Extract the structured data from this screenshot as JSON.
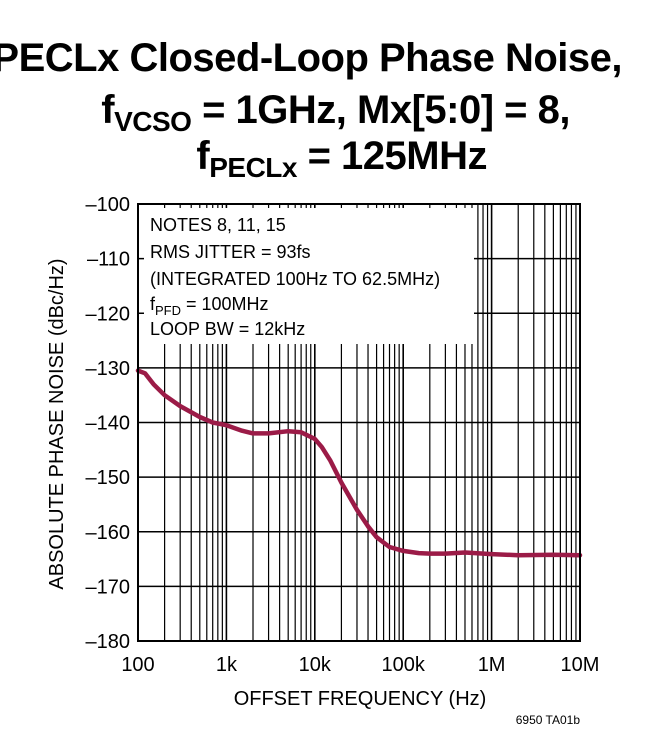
{
  "title": {
    "line1": "PECLx Closed-Loop Phase Noise,",
    "line2_prefix": "f",
    "line2_sub": "VCSO",
    "line2_rest": " = 1GHz, Mx[5:0] = 8,",
    "line3_prefix": "f",
    "line3_sub": "PECLx",
    "line3_rest": " = 125MHz"
  },
  "figure_id": "6950 TA01b",
  "notes": {
    "line1": "NOTES 8, 11, 15",
    "line2": "RMS JITTER = 93fs",
    "line3": "(INTEGRATED 100Hz TO 62.5MHz)",
    "line4_prefix": "f",
    "line4_sub": "PFD",
    "line4_rest": " = 100MHz",
    "line5": "LOOP BW = 12kHz"
  },
  "colors": {
    "curve": "#9b1b47",
    "grid": "#000000"
  },
  "chart_data": {
    "type": "line",
    "xscale": "log",
    "xlabel": "OFFSET FREQUENCY (Hz)",
    "ylabel": "ABSOLUTE PHASE NOISE (dBc/Hz)",
    "xlim": [
      100,
      10000000
    ],
    "ylim": [
      -180,
      -100
    ],
    "xticks": [
      100,
      1000,
      10000,
      100000,
      1000000,
      10000000
    ],
    "xtick_labels": [
      "100",
      "1k",
      "10k",
      "100k",
      "1M",
      "10M"
    ],
    "yticks": [
      -100,
      -110,
      -120,
      -130,
      -140,
      -150,
      -160,
      -170,
      -180
    ],
    "ytick_labels": [
      "–100",
      "–110",
      "–120",
      "–130",
      "–140",
      "–150",
      "–160",
      "–170",
      "–180"
    ],
    "grid": true,
    "series": [
      {
        "x": [
          100,
          120,
          150,
          200,
          300,
          500,
          700,
          1000,
          1500,
          2000,
          3000,
          5000,
          7000,
          10000,
          12000,
          15000,
          20000,
          30000,
          40000,
          50000,
          70000,
          100000,
          150000,
          200000,
          300000,
          500000,
          1000000,
          2000000,
          5000000,
          10000000
        ],
        "y": [
          -130.5,
          -131,
          -133,
          -135,
          -137,
          -139,
          -140,
          -140.5,
          -141.5,
          -142,
          -142,
          -141.6,
          -141.8,
          -143,
          -144.5,
          -147,
          -151,
          -156,
          -159,
          -161,
          -162.8,
          -163.5,
          -163.9,
          -164,
          -164,
          -163.8,
          -164.1,
          -164.3,
          -164.2,
          -164.3
        ]
      }
    ]
  }
}
